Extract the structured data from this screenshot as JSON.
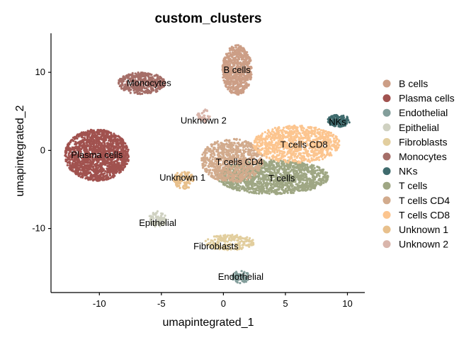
{
  "chart_data": {
    "type": "scatter",
    "title": "custom_clusters",
    "xlabel": "umapintegrated_1",
    "ylabel": "umapintegrated_2",
    "xlim": [
      -13.9,
      11.4
    ],
    "ylim": [
      -18.2,
      15.0
    ],
    "xticks": [
      -10,
      -5,
      0,
      5,
      10
    ],
    "yticks": [
      -10,
      0,
      10
    ],
    "grid": false,
    "legend_position": "right",
    "series": [
      {
        "name": "B cells",
        "color": "#CC9E86",
        "center": [
          1.1,
          10.3
        ],
        "spread": [
          1.2,
          3.2
        ],
        "n": 700,
        "label_pos": [
          1.1,
          10.3
        ]
      },
      {
        "name": "Plasma cells",
        "color": "#A1524F",
        "center": [
          -10.2,
          -0.6
        ],
        "spread": [
          2.6,
          3.3
        ],
        "n": 1500,
        "label_pos": [
          -10.2,
          -0.6
        ]
      },
      {
        "name": "Endothelial",
        "color": "#839E9B",
        "center": [
          1.4,
          -16.2
        ],
        "spread": [
          0.7,
          0.8
        ],
        "n": 80,
        "label_pos": [
          1.4,
          -16.2
        ]
      },
      {
        "name": "Epithelial",
        "color": "#CFD1C1",
        "center": [
          -5.3,
          -8.8
        ],
        "spread": [
          0.7,
          1.0
        ],
        "n": 80,
        "label_pos": [
          -5.3,
          -9.3
        ]
      },
      {
        "name": "Fibroblasts",
        "color": "#E2CE9E",
        "center": [
          0.5,
          -11.8
        ],
        "spread": [
          2.0,
          1.0
        ],
        "n": 200,
        "label_pos": [
          -0.6,
          -12.3
        ]
      },
      {
        "name": "Monocytes",
        "color": "#A56E68",
        "center": [
          -6.6,
          8.6
        ],
        "spread": [
          1.9,
          1.4
        ],
        "n": 400,
        "label_pos": [
          -6.0,
          8.6
        ]
      },
      {
        "name": "NKs",
        "color": "#3F6B6D",
        "center": [
          9.3,
          3.8
        ],
        "spread": [
          0.9,
          0.8
        ],
        "n": 150,
        "label_pos": [
          9.2,
          3.6
        ]
      },
      {
        "name": "T cells",
        "color": "#9FA784",
        "center": [
          4.0,
          -3.4
        ],
        "spread": [
          4.5,
          2.2
        ],
        "n": 1400,
        "label_pos": [
          4.7,
          -3.6
        ]
      },
      {
        "name": "T cells CD4",
        "color": "#D2AB8D",
        "center": [
          0.7,
          -1.3
        ],
        "spread": [
          2.5,
          2.8
        ],
        "n": 800,
        "label_pos": [
          1.3,
          -1.5
        ]
      },
      {
        "name": "T cells CD8",
        "color": "#FCC58F",
        "center": [
          5.9,
          0.8
        ],
        "spread": [
          3.5,
          2.4
        ],
        "n": 900,
        "label_pos": [
          6.5,
          0.7
        ]
      },
      {
        "name": "Unknown 1",
        "color": "#E8C08C",
        "center": [
          -3.2,
          -3.8
        ],
        "spread": [
          0.8,
          1.2
        ],
        "n": 120,
        "label_pos": [
          -3.3,
          -3.5
        ]
      },
      {
        "name": "Unknown 2",
        "color": "#D9B5AB",
        "center": [
          -1.6,
          4.4
        ],
        "spread": [
          0.5,
          0.9
        ],
        "n": 40,
        "label_pos": [
          -1.6,
          3.8
        ]
      }
    ]
  }
}
